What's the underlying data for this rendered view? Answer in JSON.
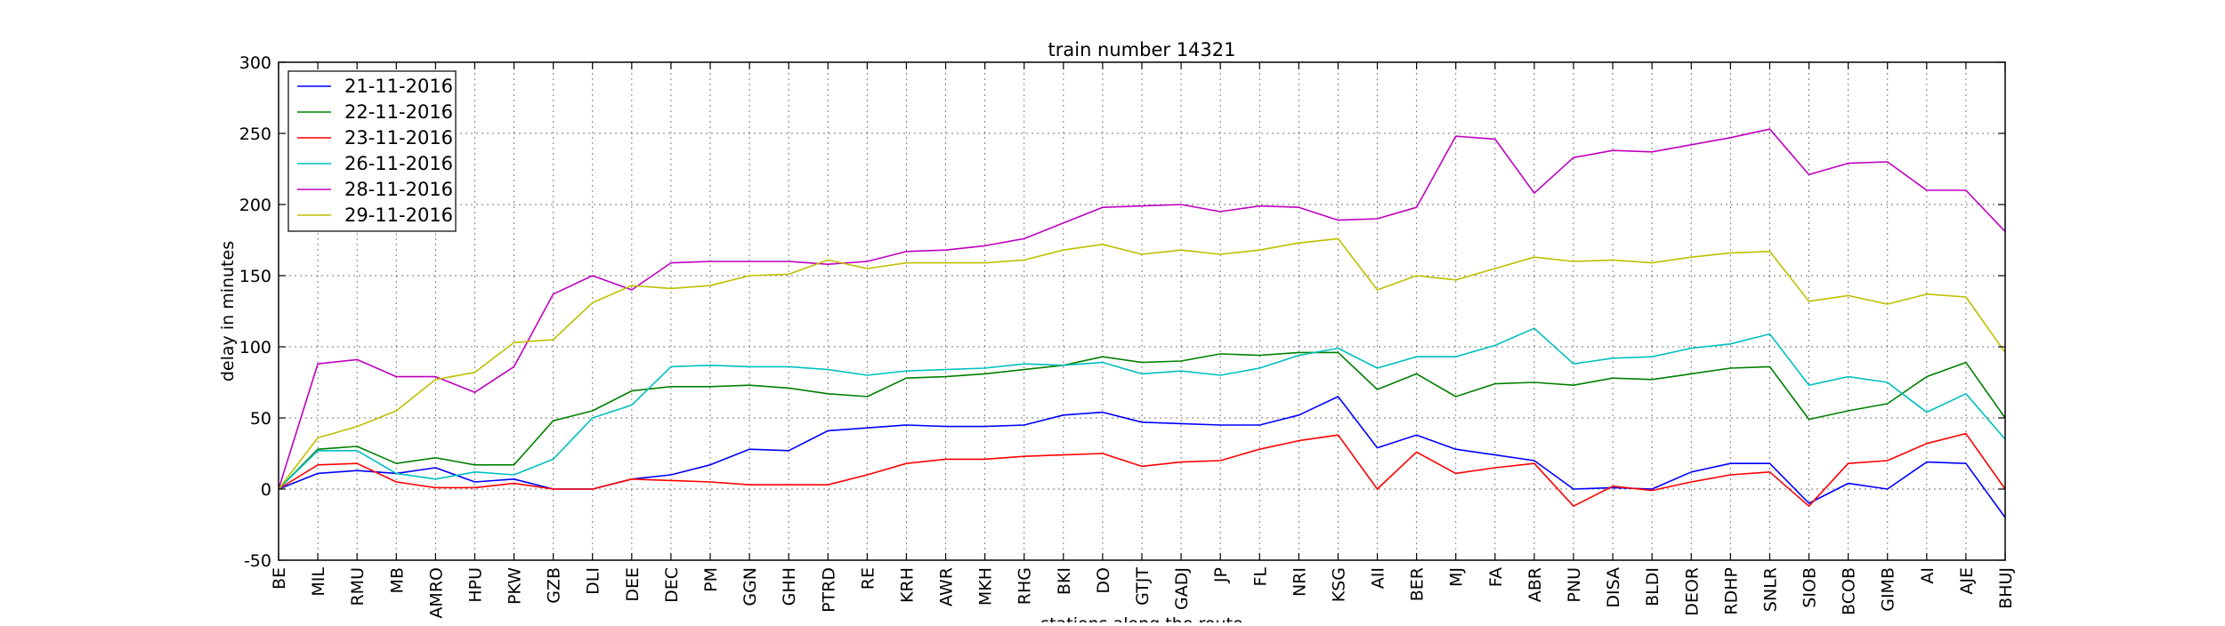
{
  "chart_data": {
    "type": "line",
    "title": "train number 14321",
    "xlabel": "stations along the route",
    "ylabel": "delay in minutes",
    "ylim": [
      -50,
      300
    ],
    "yticks": [
      -50,
      0,
      50,
      100,
      150,
      200,
      250,
      300
    ],
    "grid": true,
    "legend_position": "top-left",
    "categories": [
      "BE",
      "MIL",
      "RMU",
      "MB",
      "AMRO",
      "HPU",
      "PKW",
      "GZB",
      "DLI",
      "DEE",
      "DEC",
      "PM",
      "GGN",
      "GHH",
      "PTRD",
      "RE",
      "KRH",
      "AWR",
      "MKH",
      "RHG",
      "BKI",
      "DO",
      "GTJT",
      "GADJ",
      "JP",
      "FL",
      "NRI",
      "KSG",
      "AII",
      "BER",
      "MJ",
      "FA",
      "ABR",
      "PNU",
      "DISA",
      "BLDI",
      "DEOR",
      "RDHP",
      "SNLR",
      "SIOB",
      "BCOB",
      "GIMB",
      "AI",
      "AJE",
      "BHUJ"
    ],
    "series": [
      {
        "name": "21-11-2016",
        "color": "#0000ff",
        "values": [
          0,
          11,
          13,
          11,
          15,
          5,
          7,
          0,
          0,
          7,
          10,
          17,
          28,
          27,
          41,
          43,
          45,
          44,
          44,
          45,
          52,
          54,
          47,
          46,
          45,
          45,
          52,
          65,
          29,
          38,
          28,
          24,
          20,
          0,
          1,
          0,
          12,
          18,
          18,
          -10,
          4,
          0,
          19,
          18,
          -20
        ]
      },
      {
        "name": "22-11-2016",
        "color": "#008000",
        "values": [
          0,
          28,
          30,
          18,
          22,
          17,
          17,
          48,
          55,
          69,
          72,
          72,
          73,
          71,
          67,
          65,
          78,
          79,
          81,
          84,
          87,
          93,
          89,
          90,
          95,
          94,
          96,
          96,
          70,
          81,
          65,
          74,
          75,
          73,
          78,
          77,
          81,
          85,
          86,
          49,
          55,
          60,
          79,
          89,
          50
        ]
      },
      {
        "name": "23-11-2016",
        "color": "#ff0000",
        "values": [
          0,
          17,
          18,
          5,
          1,
          1,
          4,
          0,
          0,
          7,
          6,
          5,
          3,
          3,
          3,
          10,
          18,
          21,
          21,
          23,
          24,
          25,
          16,
          19,
          20,
          28,
          34,
          38,
          0,
          26,
          11,
          15,
          18,
          -12,
          2,
          -1,
          5,
          10,
          12,
          -12,
          18,
          20,
          32,
          39,
          0
        ]
      },
      {
        "name": "26-11-2016",
        "color": "#00bfbf",
        "values": [
          0,
          27,
          27,
          11,
          7,
          12,
          10,
          21,
          50,
          59,
          86,
          87,
          86,
          86,
          84,
          80,
          83,
          84,
          85,
          88,
          87,
          89,
          81,
          83,
          80,
          85,
          94,
          99,
          85,
          93,
          93,
          101,
          113,
          88,
          92,
          93,
          99,
          102,
          109,
          73,
          79,
          75,
          54,
          67,
          35
        ]
      },
      {
        "name": "28-11-2016",
        "color": "#bf00bf",
        "values": [
          0,
          88,
          91,
          79,
          79,
          68,
          86,
          137,
          150,
          140,
          159,
          160,
          160,
          160,
          158,
          160,
          167,
          168,
          171,
          176,
          187,
          198,
          199,
          200,
          195,
          199,
          198,
          189,
          190,
          198,
          248,
          246,
          208,
          233,
          238,
          237,
          242,
          247,
          253,
          221,
          229,
          230,
          210,
          210,
          181
        ]
      },
      {
        "name": "29-11-2016",
        "color": "#bfbf00",
        "values": [
          0,
          36,
          44,
          55,
          77,
          82,
          103,
          105,
          131,
          143,
          141,
          143,
          150,
          151,
          161,
          155,
          159,
          159,
          159,
          161,
          168,
          172,
          165,
          168,
          165,
          168,
          173,
          176,
          140,
          150,
          147,
          155,
          163,
          160,
          161,
          159,
          163,
          166,
          167,
          132,
          136,
          130,
          137,
          135,
          96
        ]
      }
    ]
  }
}
